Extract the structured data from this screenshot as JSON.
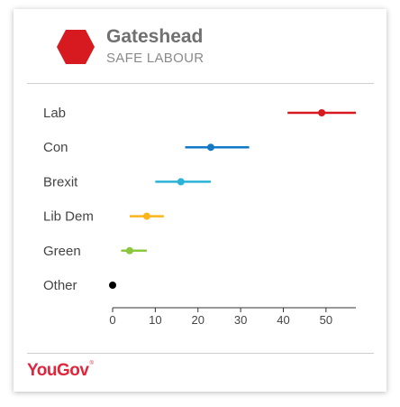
{
  "header": {
    "constituency": "Gateshead",
    "rating": "SAFE LABOUR",
    "rating_color": "#d71920"
  },
  "brand": {
    "logo_text": "YouGov",
    "logo_mark": "®",
    "color": "#e0263c"
  },
  "chart_data": {
    "type": "range-dot",
    "categories": [
      "Lab",
      "Con",
      "Brexit",
      "Lib Dem",
      "Green",
      "Other"
    ],
    "series": [
      {
        "values": [
          49,
          23,
          16,
          8,
          4,
          0
        ]
      }
    ],
    "ranges": [
      [
        41,
        57
      ],
      [
        17,
        32
      ],
      [
        10,
        23
      ],
      [
        4,
        12
      ],
      [
        2,
        8
      ],
      [
        0,
        0
      ]
    ],
    "colors": [
      "#d71920",
      "#1279c6",
      "#29b3d6",
      "#fbb41a",
      "#8dc63f",
      "#000000"
    ],
    "xticks": [
      0,
      10,
      20,
      30,
      40,
      50
    ],
    "xlim": [
      0,
      57
    ],
    "title": "",
    "xlabel": "",
    "ylabel": "",
    "grid": false
  }
}
